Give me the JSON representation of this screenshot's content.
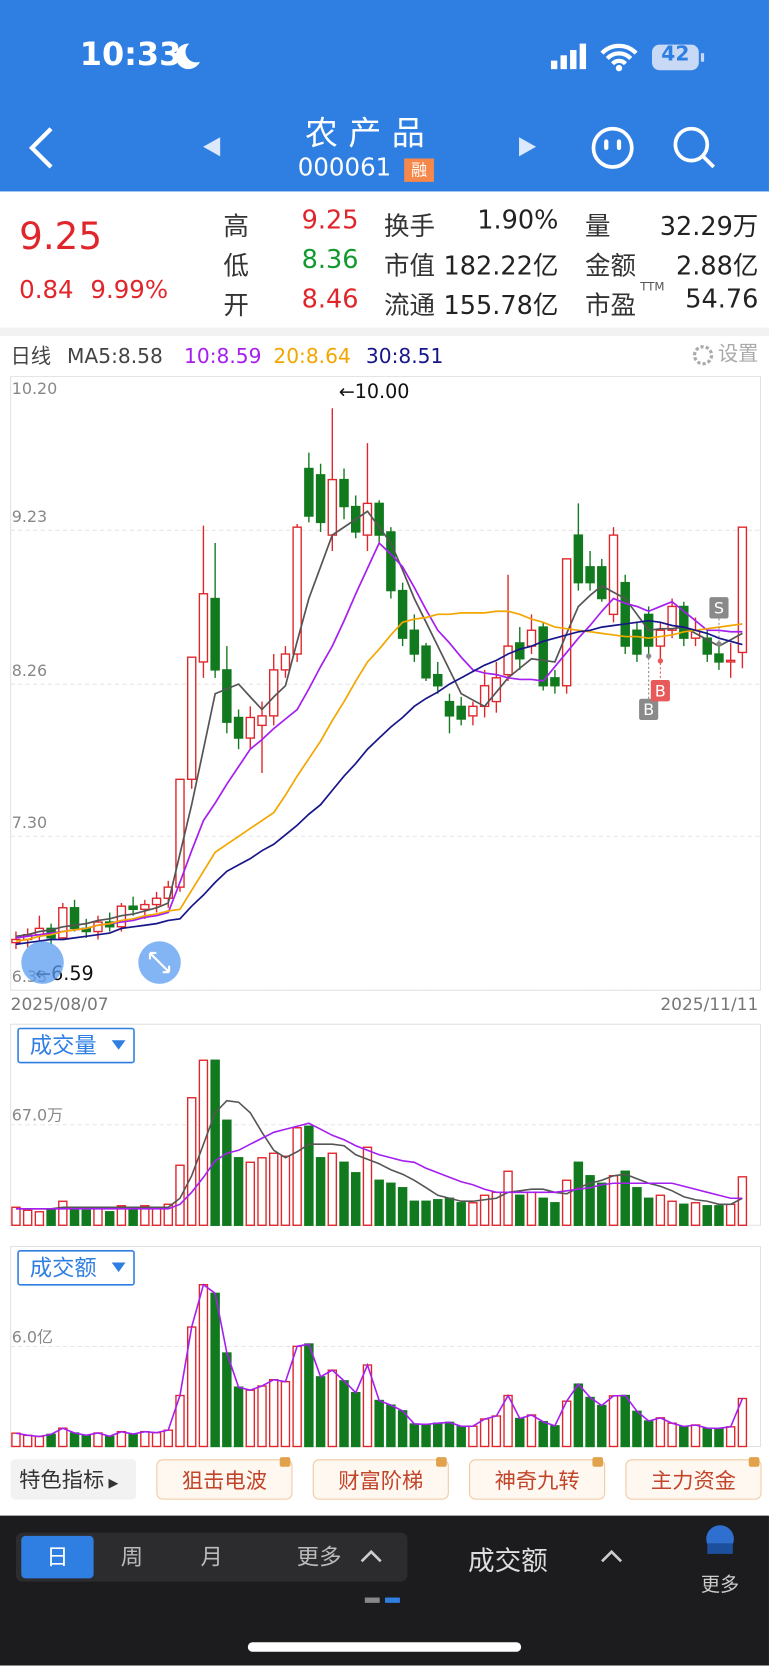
{
  "status_bar": {
    "time": "10:33",
    "battery": "42"
  },
  "header": {
    "title": "农 产 品",
    "code": "000061",
    "badge": "融"
  },
  "quote": {
    "price": "9.25",
    "change": "0.84",
    "change_pct": "9.99%",
    "stats": [
      [
        {
          "label": "高",
          "value": "9.25"
        },
        {
          "label": "换手",
          "value": "1.90%"
        },
        {
          "label": "量",
          "value": "32.29万"
        }
      ],
      [
        {
          "label": "低",
          "value": "8.36"
        },
        {
          "label": "市值",
          "value": "182.22亿"
        },
        {
          "label": "金额",
          "value": "2.88亿"
        }
      ],
      [
        {
          "label": "开",
          "value": "8.46"
        },
        {
          "label": "流通",
          "value": "155.78亿"
        },
        {
          "label": "市盈",
          "sup": "TTM",
          "value": "54.76"
        }
      ]
    ]
  },
  "chart_data": [
    {
      "type": "candlestick",
      "period_label": "日线",
      "settings": "设置",
      "x_start": "2025/08/07",
      "x_end": "2025/11/11",
      "ylim": [
        6.33,
        10.2
      ],
      "yticks": [
        {
          "value": 10.2,
          "label": "10.20"
        },
        9.23,
        8.26,
        {
          "value": 7.3,
          "label": "7.30"
        },
        6.33
      ],
      "up_color": "#e0262b",
      "down_color": "#127a1e",
      "max_label": "←10.00",
      "min_label": "←6.59",
      "open": [
        6.63,
        6.65,
        6.68,
        6.72,
        6.66,
        6.85,
        6.72,
        6.7,
        6.76,
        6.73,
        6.86,
        6.84,
        6.87,
        6.91,
        6.98,
        7.66,
        8.4,
        8.8,
        8.35,
        8.05,
        7.92,
        8.0,
        8.06,
        8.35,
        8.45,
        9.62,
        9.58,
        9.2,
        9.55,
        9.38,
        9.2,
        9.4,
        9.22,
        8.85,
        8.6,
        8.5,
        8.32,
        8.15,
        8.12,
        8.06,
        8.12,
        8.15,
        8.32,
        8.52,
        8.5,
        8.62,
        8.3,
        8.25,
        9.2,
        9.0,
        9.0,
        8.7,
        8.9,
        8.6,
        8.7,
        8.5,
        8.6,
        8.75,
        8.55,
        8.55,
        8.45,
        8.4,
        8.46
      ],
      "high": [
        6.7,
        6.72,
        6.8,
        6.75,
        6.88,
        6.9,
        6.78,
        6.8,
        6.82,
        6.88,
        6.92,
        6.9,
        6.95,
        7.02,
        7.66,
        8.43,
        9.26,
        9.15,
        8.5,
        8.1,
        8.12,
        8.15,
        8.45,
        8.5,
        9.27,
        9.72,
        9.65,
        10.0,
        9.62,
        9.45,
        9.78,
        9.42,
        9.25,
        8.9,
        8.7,
        8.52,
        8.4,
        8.2,
        8.18,
        8.15,
        8.35,
        8.4,
        8.95,
        8.62,
        8.7,
        8.65,
        8.35,
        9.05,
        9.4,
        9.1,
        9.05,
        9.25,
        8.95,
        8.65,
        8.75,
        8.65,
        8.8,
        8.78,
        8.68,
        8.6,
        8.5,
        8.52,
        9.25
      ],
      "low": [
        6.59,
        6.6,
        6.64,
        6.62,
        6.65,
        6.7,
        6.66,
        6.65,
        6.7,
        6.7,
        6.8,
        6.78,
        6.82,
        6.85,
        6.95,
        7.6,
        8.3,
        8.3,
        7.95,
        7.85,
        7.85,
        7.7,
        8.0,
        8.3,
        8.4,
        9.28,
        9.22,
        9.1,
        9.3,
        9.18,
        9.1,
        9.15,
        8.8,
        8.5,
        8.4,
        8.28,
        8.2,
        7.95,
        8.0,
        8.0,
        8.05,
        8.08,
        8.28,
        8.35,
        8.45,
        8.22,
        8.2,
        8.2,
        8.85,
        8.85,
        8.78,
        8.65,
        8.45,
        8.4,
        8.45,
        8.42,
        8.55,
        8.5,
        8.5,
        8.4,
        8.35,
        8.3,
        8.36
      ],
      "close": [
        6.65,
        6.68,
        6.72,
        6.66,
        6.85,
        6.72,
        6.7,
        6.76,
        6.73,
        6.86,
        6.84,
        6.87,
        6.91,
        6.98,
        7.66,
        8.43,
        8.83,
        8.35,
        8.02,
        7.92,
        8.05,
        8.06,
        8.35,
        8.45,
        9.25,
        9.32,
        9.28,
        9.55,
        9.38,
        9.22,
        9.4,
        9.2,
        8.85,
        8.55,
        8.45,
        8.3,
        8.25,
        8.06,
        8.04,
        8.12,
        8.25,
        8.3,
        8.5,
        8.42,
        8.6,
        8.25,
        8.25,
        9.05,
        8.9,
        8.9,
        8.8,
        9.2,
        8.5,
        8.45,
        8.5,
        8.6,
        8.75,
        8.55,
        8.6,
        8.45,
        8.4,
        8.41,
        9.25
      ],
      "ma": [
        {
          "name": "MA5:8.58",
          "color": "#555555",
          "values": [
            6.67,
            6.68,
            6.7,
            6.71,
            6.73,
            6.74,
            6.75,
            6.77,
            6.78,
            6.8,
            6.81,
            6.83,
            6.85,
            6.88,
            7.19,
            7.5,
            7.85,
            8.2,
            8.23,
            8.26,
            8.18,
            8.1,
            8.18,
            8.25,
            8.53,
            8.8,
            9.0,
            9.2,
            9.25,
            9.3,
            9.35,
            9.25,
            9.15,
            8.98,
            8.8,
            8.65,
            8.5,
            8.35,
            8.2,
            8.16,
            8.12,
            8.21,
            8.3,
            8.36,
            8.42,
            8.41,
            8.4,
            8.58,
            8.75,
            8.82,
            8.88,
            8.84,
            8.8,
            8.7,
            8.6,
            8.61,
            8.61,
            8.62,
            8.58,
            8.54,
            8.5,
            8.54,
            8.58
          ]
        },
        {
          "name": "10:8.59",
          "color": "#a51ff0",
          "values": [
            6.66,
            6.67,
            6.68,
            6.69,
            6.7,
            6.71,
            6.72,
            6.74,
            6.75,
            6.76,
            6.77,
            6.79,
            6.8,
            6.82,
            7.01,
            7.21,
            7.4,
            7.51,
            7.63,
            7.74,
            7.85,
            7.91,
            7.98,
            8.04,
            8.1,
            8.23,
            8.37,
            8.5,
            8.66,
            8.83,
            8.99,
            9.15,
            9.08,
            9.0,
            8.87,
            8.73,
            8.6,
            8.52,
            8.43,
            8.35,
            8.33,
            8.32,
            8.3,
            8.29,
            8.29,
            8.28,
            8.37,
            8.46,
            8.55,
            8.63,
            8.72,
            8.8,
            8.77,
            8.75,
            8.72,
            8.75,
            8.78,
            8.72,
            8.66,
            8.6,
            8.6,
            8.59,
            8.59
          ]
        },
        {
          "name": "20:8.64",
          "color": "#f3a600",
          "values": [
            6.64,
            6.65,
            6.67,
            6.68,
            6.7,
            6.71,
            6.72,
            6.74,
            6.75,
            6.77,
            6.78,
            6.8,
            6.81,
            6.83,
            6.84,
            6.96,
            7.08,
            7.2,
            7.25,
            7.3,
            7.35,
            7.4,
            7.45,
            7.56,
            7.68,
            7.79,
            7.9,
            8.03,
            8.15,
            8.28,
            8.4,
            8.48,
            8.57,
            8.65,
            8.67,
            8.68,
            8.7,
            8.7,
            8.71,
            8.71,
            8.71,
            8.72,
            8.72,
            8.7,
            8.67,
            8.65,
            8.62,
            8.61,
            8.6,
            8.59,
            8.58,
            8.57,
            8.56,
            8.56,
            8.55,
            8.56,
            8.57,
            8.59,
            8.6,
            8.61,
            8.62,
            8.63,
            8.64
          ]
        },
        {
          "name": "30:8.51",
          "color": "#17168a",
          "values": [
            6.62,
            6.63,
            6.64,
            6.65,
            6.65,
            6.66,
            6.67,
            6.68,
            6.69,
            6.72,
            6.73,
            6.74,
            6.75,
            6.77,
            6.78,
            6.86,
            6.93,
            7.01,
            7.08,
            7.12,
            7.16,
            7.21,
            7.25,
            7.31,
            7.37,
            7.44,
            7.5,
            7.59,
            7.68,
            7.76,
            7.85,
            7.92,
            7.99,
            8.05,
            8.12,
            8.17,
            8.21,
            8.26,
            8.3,
            8.34,
            8.38,
            8.41,
            8.45,
            8.48,
            8.5,
            8.53,
            8.55,
            8.57,
            8.59,
            8.6,
            8.62,
            8.63,
            8.64,
            8.65,
            8.66,
            8.65,
            8.63,
            8.62,
            8.6,
            8.58,
            8.55,
            8.53,
            8.51
          ]
        }
      ],
      "signals": [
        {
          "label": "S",
          "index": 60,
          "color": "#8a8a8a",
          "side": "above"
        },
        {
          "label": "B",
          "index": 54,
          "color": "#8a8a8a",
          "side": "below"
        },
        {
          "label": "B",
          "index": 55,
          "color": "#e85a5a",
          "side": "below"
        }
      ]
    },
    {
      "type": "bar",
      "label": "成交量",
      "ylim": [
        0,
        134
      ],
      "yticks": [
        {
          "value": 67,
          "label": "67.0万"
        }
      ],
      "values": [
        12,
        10,
        9,
        11,
        16,
        12,
        10,
        12,
        9,
        13,
        11,
        13,
        12,
        14,
        40,
        85,
        110,
        110,
        70,
        45,
        42,
        45,
        48,
        46,
        65,
        66,
        45,
        48,
        42,
        35,
        52,
        30,
        28,
        25,
        16,
        16,
        17,
        18,
        15,
        15,
        20,
        22,
        36,
        20,
        22,
        18,
        15,
        30,
        42,
        33,
        28,
        33,
        36,
        25,
        18,
        20,
        16,
        14,
        15,
        13,
        13,
        14,
        32.29
      ],
      "ma_lines": [
        {
          "color": "#555555",
          "values": [
            11,
            11,
            11,
            11,
            12,
            12,
            12,
            12,
            12,
            12,
            12,
            12,
            12,
            12,
            18,
            33,
            54,
            75,
            83,
            82,
            75,
            62,
            50,
            45,
            49,
            54,
            54,
            54,
            53,
            47,
            44,
            41,
            37,
            34,
            30,
            25,
            20,
            18,
            16,
            16,
            17,
            18,
            22,
            23,
            24,
            24,
            22,
            21,
            25,
            28,
            30,
            33,
            34,
            31,
            28,
            26,
            23,
            19,
            17,
            16,
            14,
            14,
            18
          ]
        },
        {
          "color": "#a51ff0",
          "values": [
            11,
            11,
            11,
            11,
            11,
            11,
            11,
            11,
            11,
            11,
            11,
            11,
            11,
            11,
            14,
            22,
            32,
            43,
            48,
            50,
            54,
            58,
            62,
            64,
            66,
            68,
            64,
            60,
            57,
            53,
            50,
            47,
            45,
            43,
            42,
            38,
            35,
            32,
            29,
            27,
            24,
            22,
            22,
            22,
            22,
            22,
            22,
            23,
            24,
            25,
            27,
            28,
            28,
            28,
            28,
            28,
            28,
            26,
            24,
            22,
            20,
            18,
            18
          ]
        }
      ]
    },
    {
      "type": "bar",
      "label": "成交额",
      "ylim": [
        0,
        12
      ],
      "yticks": [
        {
          "value": 6,
          "label": "6.0亿"
        }
      ],
      "values": [
        0.8,
        0.67,
        0.6,
        0.73,
        1.1,
        0.81,
        0.67,
        0.81,
        0.61,
        0.89,
        0.75,
        0.89,
        0.83,
        0.98,
        3.06,
        7.17,
        9.71,
        9.19,
        5.61,
        3.56,
        3.38,
        3.63,
        4.01,
        3.89,
        6.01,
        6.15,
        4.18,
        4.58,
        3.94,
        3.23,
        4.89,
        2.76,
        2.48,
        2.14,
        1.35,
        1.33,
        1.4,
        1.45,
        1.21,
        1.22,
        1.65,
        1.83,
        3.06,
        1.68,
        1.89,
        1.49,
        1.24,
        2.72,
        3.74,
        2.94,
        2.46,
        3.04,
        3.06,
        2.11,
        1.53,
        1.72,
        1.4,
        1.2,
        1.29,
        1.1,
        1.09,
        1.18,
        2.88
      ],
      "line_color": "#a51ff0"
    }
  ],
  "indicators": {
    "title": "特色指标",
    "buttons": [
      "狙击电波",
      "财富阶梯",
      "神奇九转",
      "主力资金"
    ]
  },
  "bottom_bar": {
    "periods": [
      "日",
      "周",
      "月",
      "更多"
    ],
    "selected": 0,
    "panel": "成交额",
    "more": "更多"
  }
}
